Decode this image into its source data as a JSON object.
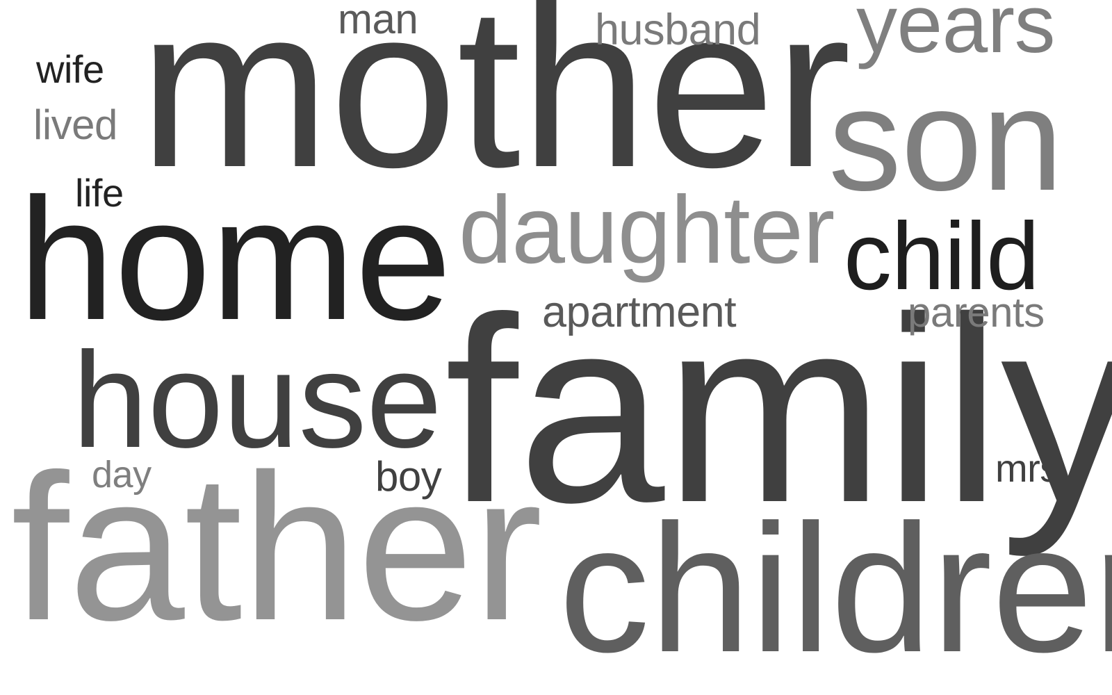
{
  "words": {
    "mother": {
      "text": "mother",
      "color": "#404040"
    },
    "home": {
      "text": "home",
      "color": "#222222"
    },
    "house": {
      "text": "house",
      "color": "#404040"
    },
    "family": {
      "text": "family",
      "color": "#404040"
    },
    "father": {
      "text": "father",
      "color": "#949494"
    },
    "children": {
      "text": "children",
      "color": "#5f5f5f"
    },
    "son": {
      "text": "son",
      "color": "#7f7f7f"
    },
    "daughter": {
      "text": "daughter",
      "color": "#8e8e8e"
    },
    "child": {
      "text": "child",
      "color": "#1e1e1e"
    },
    "years": {
      "text": "years",
      "color": "#7f7f7f"
    },
    "apartment": {
      "text": "apartment",
      "color": "#5a5a5a"
    },
    "parents": {
      "text": "parents",
      "color": "#7a7a7a"
    },
    "husband": {
      "text": "husband",
      "color": "#7a7a7a"
    },
    "man": {
      "text": "man",
      "color": "#5a5a5a"
    },
    "wife": {
      "text": "wife",
      "color": "#222222"
    },
    "lived": {
      "text": "lived",
      "color": "#7a7a7a"
    },
    "life": {
      "text": "life",
      "color": "#222222"
    },
    "day": {
      "text": "day",
      "color": "#7f7f7f"
    },
    "boy": {
      "text": "boy",
      "color": "#404040"
    },
    "mrs": {
      "text": "mrs",
      "color": "#404040"
    }
  }
}
